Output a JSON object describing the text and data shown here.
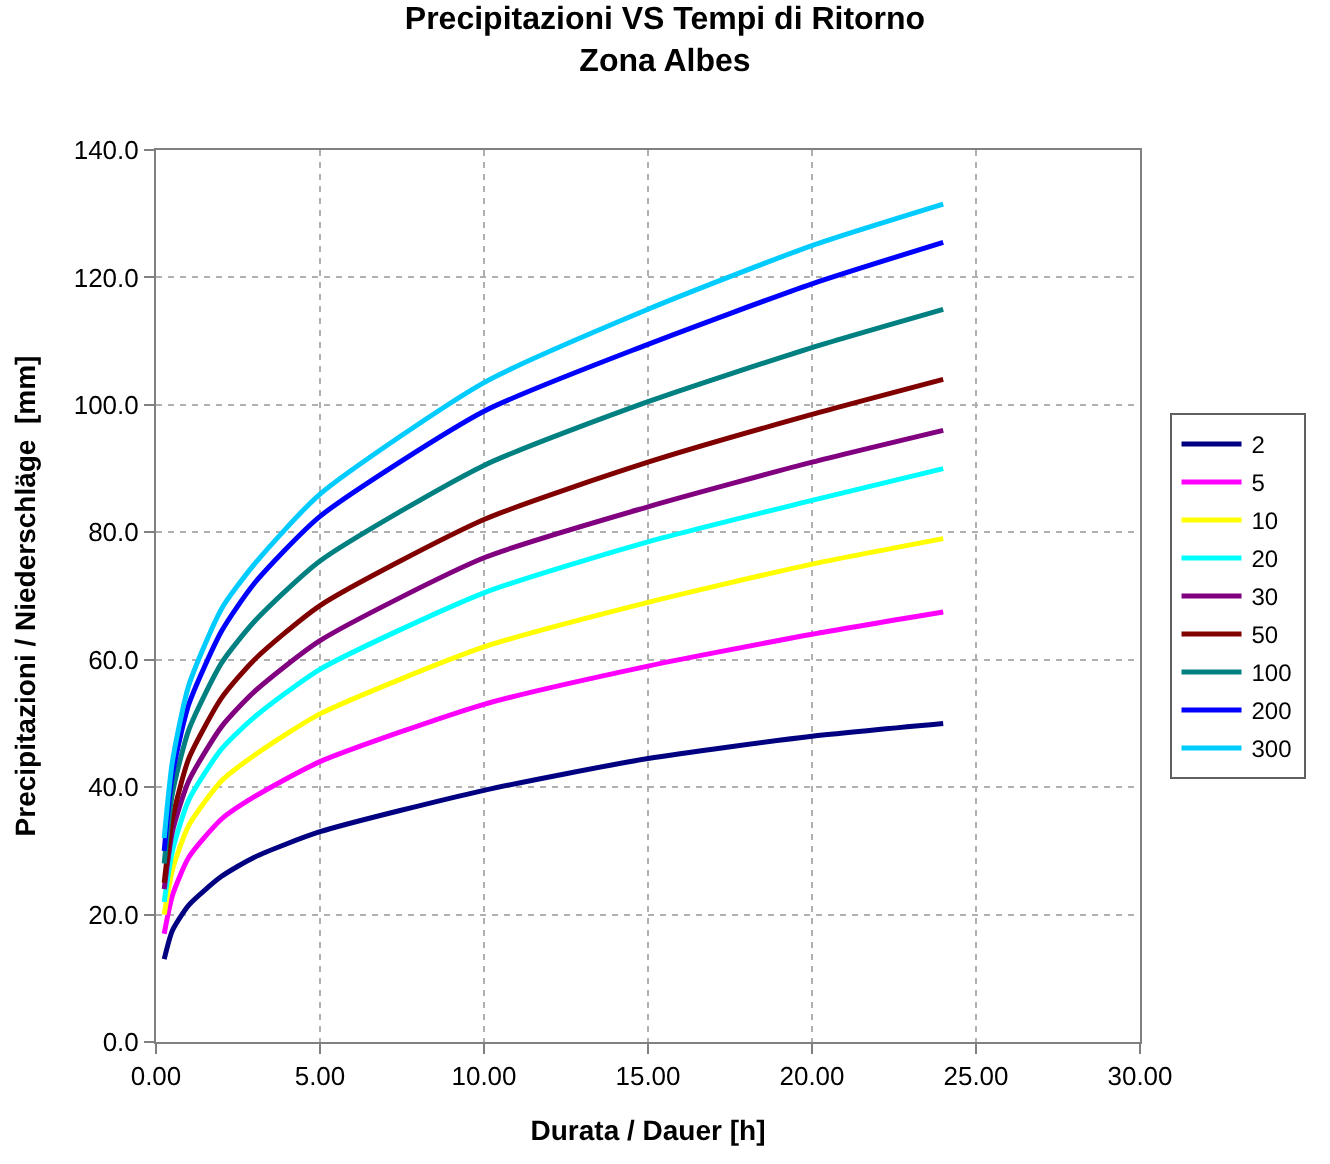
{
  "chart_data": {
    "type": "line",
    "title": "Precipitazioni VS Tempi di Ritorno\nZona Albes",
    "xlabel": "Durata / Dauer [h]",
    "ylabel": "Precipitazioni / Niederschläge  [mm]",
    "x": [
      0.25,
      0.5,
      1,
      2,
      3,
      5,
      10,
      15,
      20,
      24
    ],
    "series": [
      {
        "name": "2",
        "color": "#000080",
        "values": [
          13,
          17.5,
          21.5,
          26,
          29,
          33,
          39.5,
          44.5,
          48,
          50
        ]
      },
      {
        "name": "5",
        "color": "#ff00ff",
        "values": [
          17,
          23,
          29,
          35,
          38.5,
          44,
          53,
          59,
          64,
          67.5
        ]
      },
      {
        "name": "10",
        "color": "#ffff00",
        "values": [
          20,
          27,
          34,
          41,
          45,
          51.5,
          62,
          69,
          75,
          79
        ]
      },
      {
        "name": "20",
        "color": "#00ffff",
        "values": [
          22,
          30,
          38,
          46,
          51,
          58.5,
          70.5,
          78.5,
          85,
          90
        ]
      },
      {
        "name": "30",
        "color": "#800080",
        "values": [
          24,
          33,
          41,
          49.5,
          55,
          63,
          76,
          84,
          91,
          96
        ]
      },
      {
        "name": "50",
        "color": "#800000",
        "values": [
          25,
          35,
          44.5,
          54,
          60,
          68.5,
          82,
          91,
          98.5,
          104
        ]
      },
      {
        "name": "100",
        "color": "#008080",
        "values": [
          28,
          39,
          49,
          59.5,
          66,
          75.5,
          90.5,
          100.5,
          109,
          115
        ]
      },
      {
        "name": "200",
        "color": "#0000ff",
        "values": [
          30,
          42,
          53,
          64.5,
          72,
          82.5,
          99,
          109.5,
          119,
          125.5
        ]
      },
      {
        "name": "300",
        "color": "#00ccff",
        "values": [
          32,
          44,
          56,
          68,
          75,
          86,
          103.5,
          115,
          125,
          131.5
        ]
      }
    ],
    "xlim": [
      0,
      30
    ],
    "xticks": [
      {
        "value": 0,
        "label": "0.00"
      },
      {
        "value": 5,
        "label": "5.00"
      },
      {
        "value": 10,
        "label": "10.00"
      },
      {
        "value": 15,
        "label": "15.00"
      },
      {
        "value": 20,
        "label": "20.00"
      },
      {
        "value": 25,
        "label": "25.00"
      },
      {
        "value": 30,
        "label": "30.00"
      }
    ],
    "ylim": [
      0,
      140
    ],
    "yticks": [
      {
        "value": 0,
        "label": "0.0"
      },
      {
        "value": 20,
        "label": "20.0"
      },
      {
        "value": 40,
        "label": "40.0"
      },
      {
        "value": 60,
        "label": "60.0"
      },
      {
        "value": 80,
        "label": "80.0"
      },
      {
        "value": 100,
        "label": "100.0"
      },
      {
        "value": 120,
        "label": "120.0"
      },
      {
        "value": 140,
        "label": "140.0"
      }
    ],
    "grid": true,
    "legend": "right",
    "marker": "none",
    "line_style": "solid"
  }
}
